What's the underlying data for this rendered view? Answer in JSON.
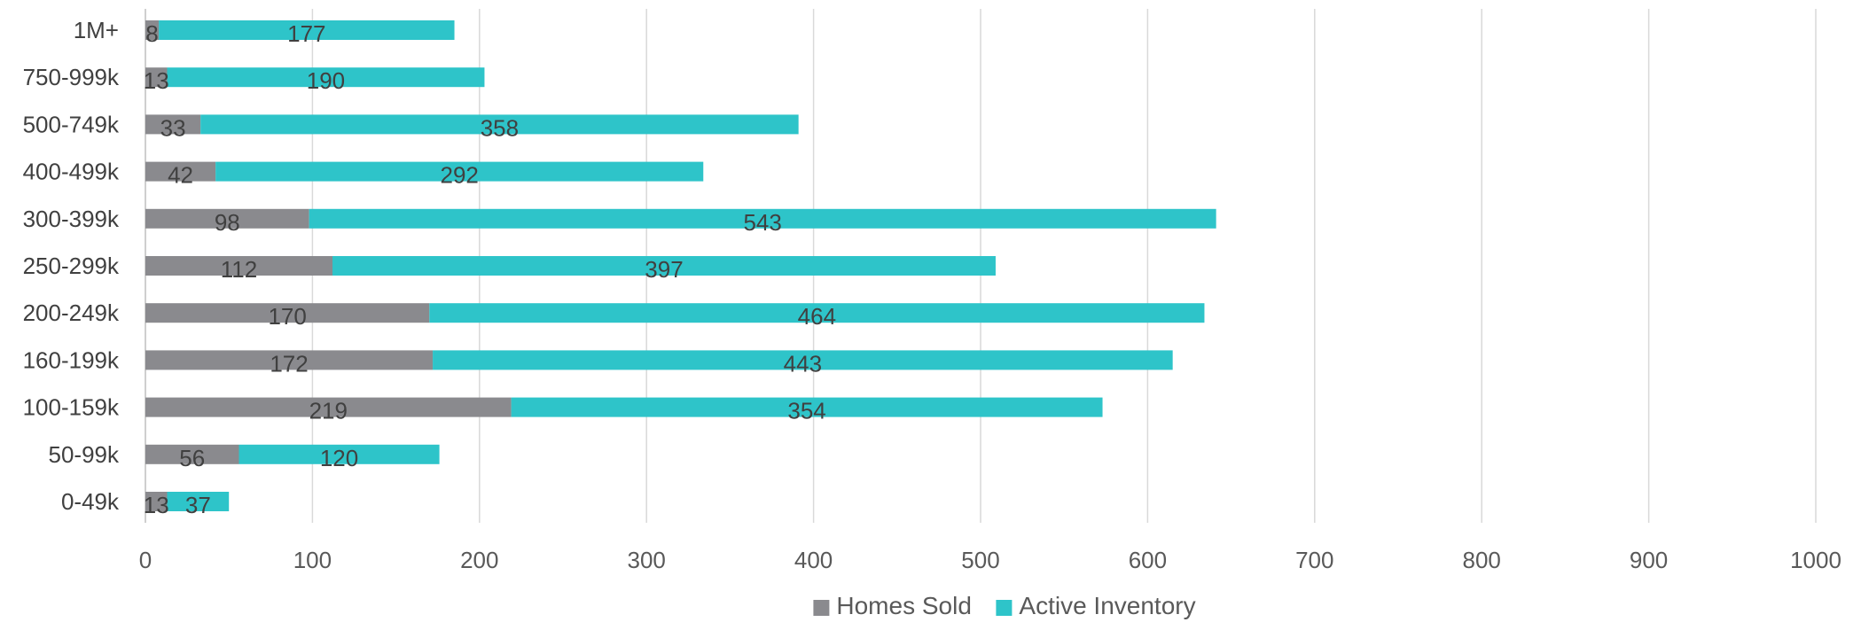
{
  "chart_data": {
    "type": "bar",
    "orientation": "horizontal",
    "stacked": true,
    "categories": [
      "1M+",
      "750-999k",
      "500-749k",
      "400-499k",
      "300-399k",
      "250-299k",
      "200-249k",
      "160-199k",
      "100-159k",
      "50-99k",
      "0-49k"
    ],
    "series": [
      {
        "name": "Homes Sold",
        "color": "#8a8a8e",
        "values": [
          8,
          13,
          33,
          42,
          98,
          112,
          170,
          172,
          219,
          56,
          13
        ]
      },
      {
        "name": "Active Inventory",
        "color": "#2ec4c9",
        "values": [
          177,
          190,
          358,
          292,
          543,
          397,
          464,
          443,
          354,
          120,
          37
        ]
      }
    ],
    "xlim": [
      0,
      1000
    ],
    "xticks": [
      0,
      100,
      200,
      300,
      400,
      500,
      600,
      700,
      800,
      900,
      1000
    ],
    "title": "",
    "xlabel": "",
    "ylabel": "",
    "grid": "vertical",
    "legend": "bottom"
  }
}
